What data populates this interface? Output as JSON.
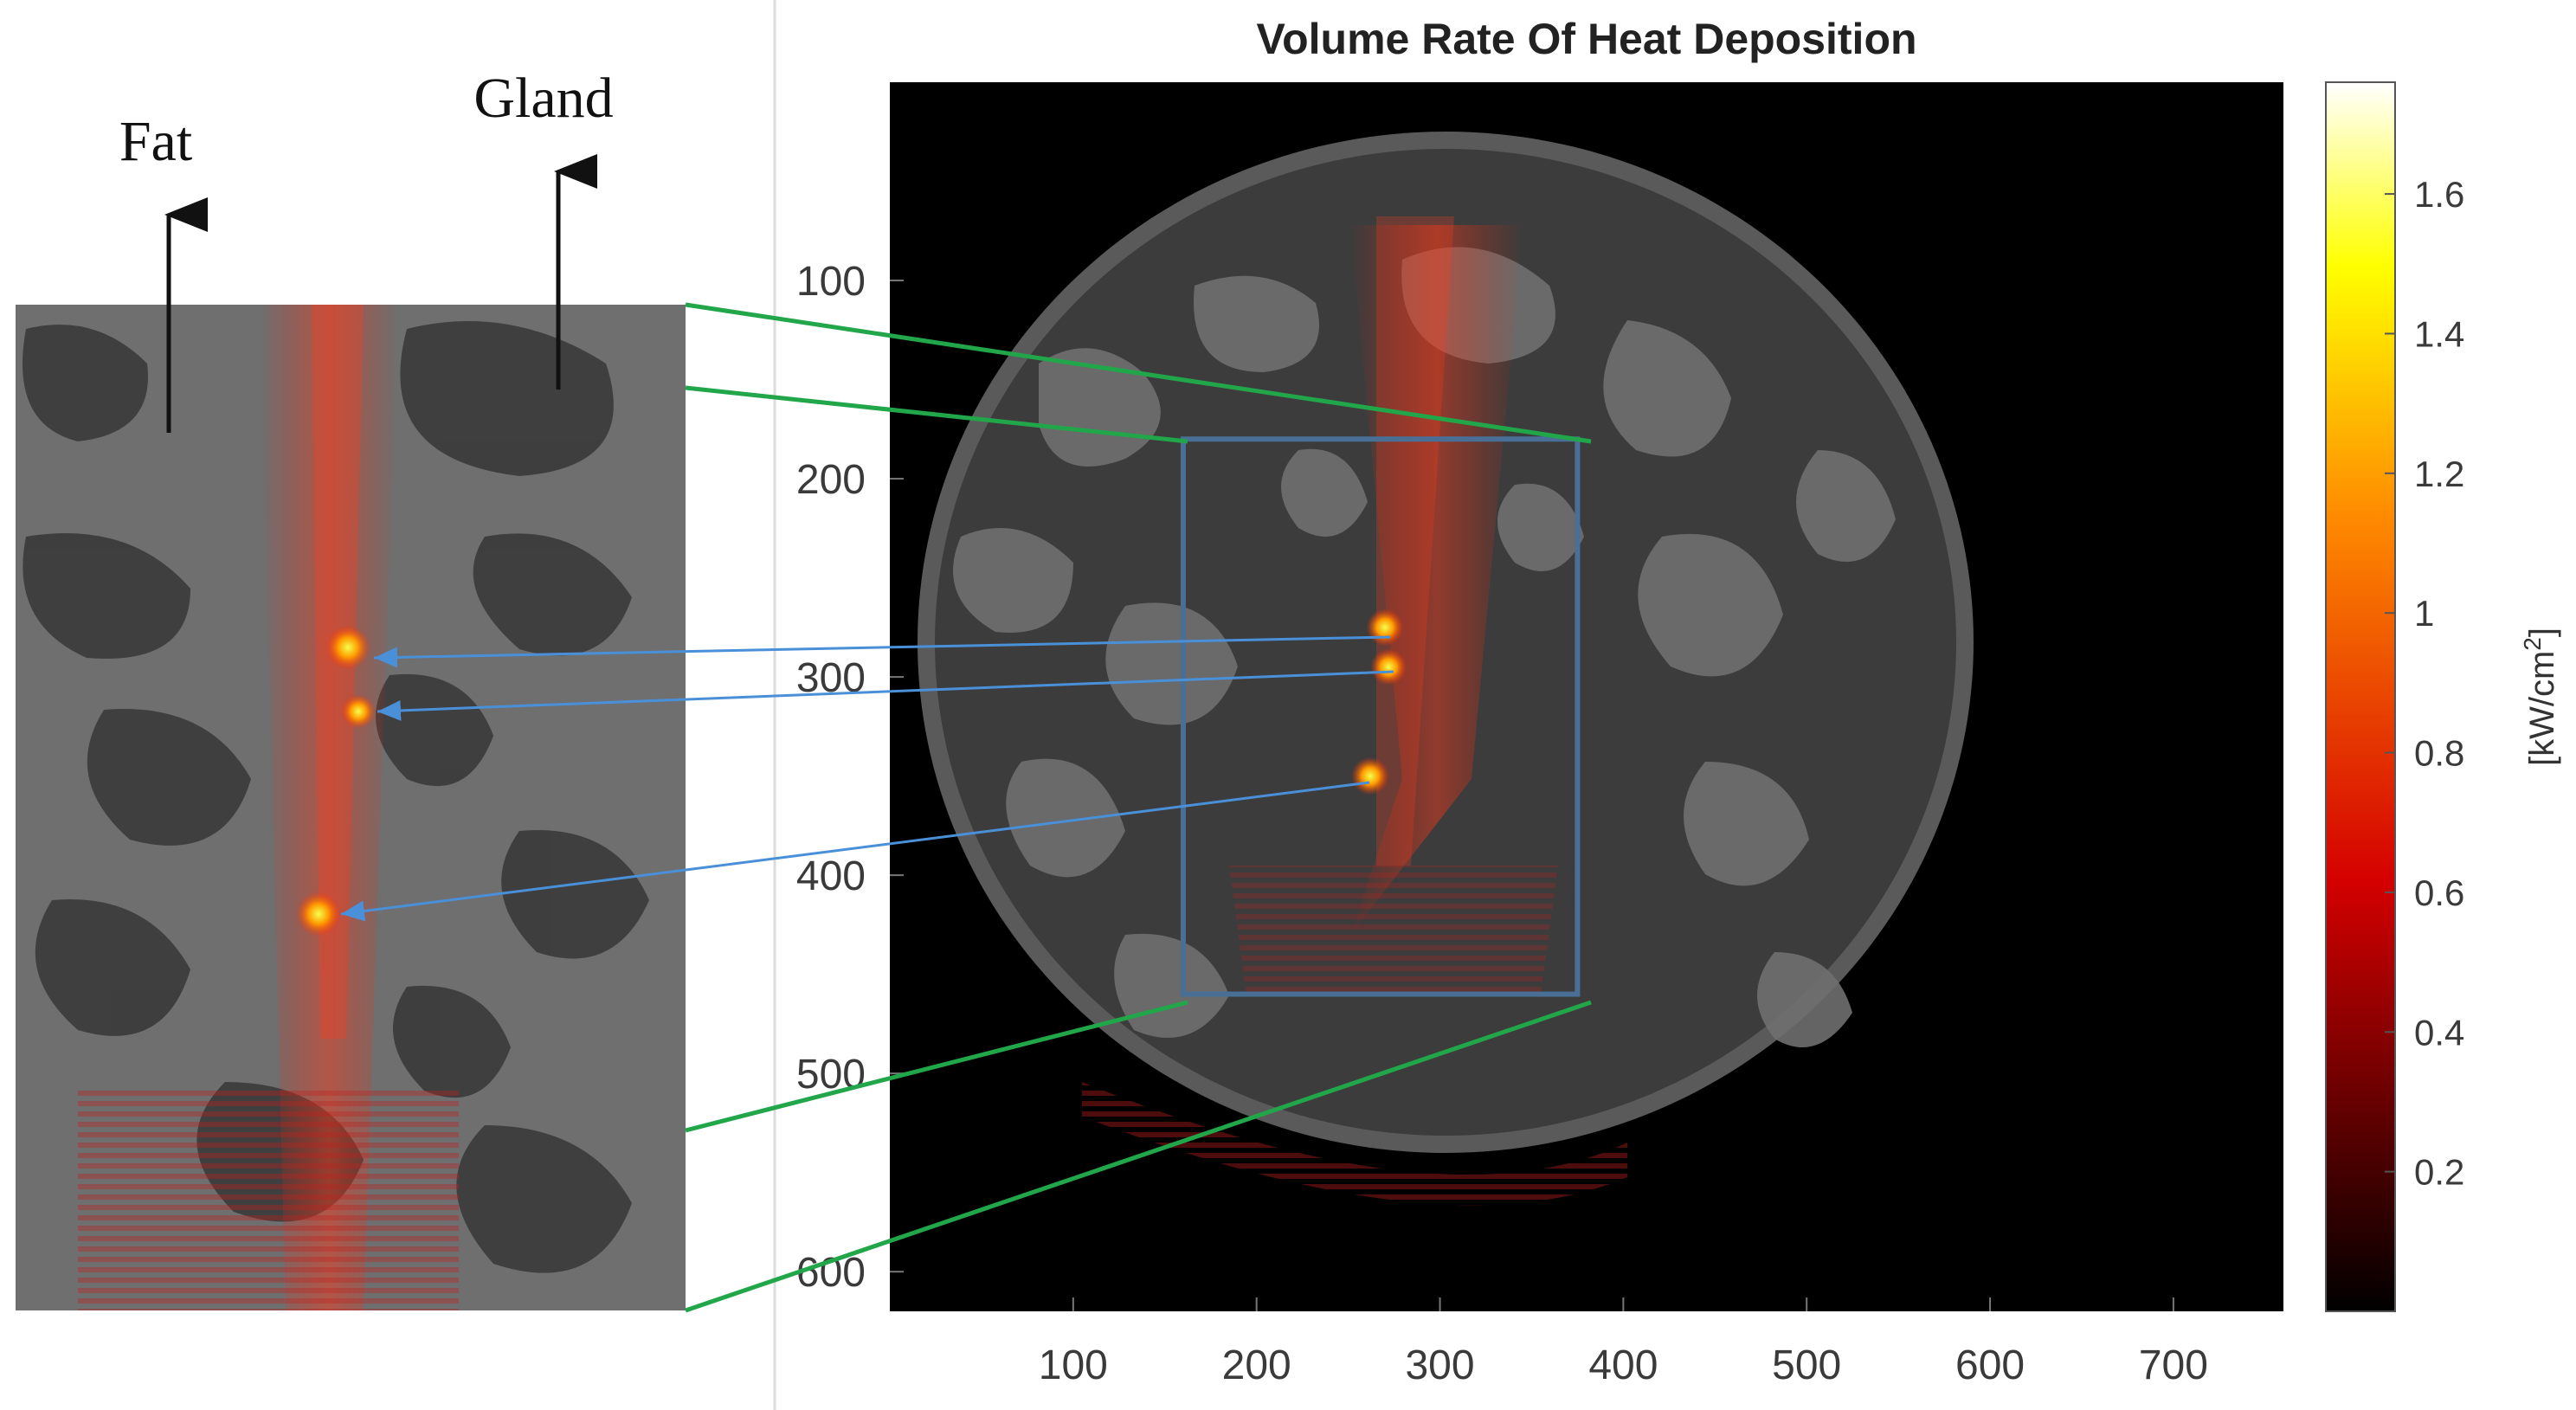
{
  "chart_data": {
    "type": "heatmap",
    "title": "Volume Rate Of Heat Deposition",
    "xlabel": "",
    "ylabel": "",
    "x_ticks": [
      100,
      200,
      300,
      400,
      500,
      600,
      700
    ],
    "y_ticks": [
      100,
      200,
      300,
      400,
      500,
      600
    ],
    "xlim": [
      0,
      760
    ],
    "ylim": [
      620,
      0
    ],
    "colorbar": {
      "label_prefix": "[kW/cm",
      "label_sup": "2",
      "label_suffix": "]",
      "ticks": [
        0.2,
        0.4,
        0.6,
        0.8,
        1,
        1.2,
        1.4,
        1.6
      ],
      "range": [
        0,
        1.76
      ],
      "colormap": "hot"
    },
    "roi_box": {
      "x": [
        160,
        375
      ],
      "y": [
        180,
        460
      ]
    },
    "hotspots": [
      {
        "x": 270,
        "y": 275,
        "value": 1.4
      },
      {
        "x": 272,
        "y": 295,
        "value": 1.3
      },
      {
        "x": 262,
        "y": 350,
        "value": 1.5
      }
    ],
    "inset": {
      "annotations": [
        "Fat",
        "Gland"
      ]
    },
    "colors": {
      "background": "#000000",
      "tissue_fat": "#6f6f6f",
      "tissue_gland": "#3c3c3c",
      "roi_box": "#4a6f96",
      "zoom_lines": "#22a64a",
      "hotspot_arrows": "#4a90d9"
    }
  }
}
